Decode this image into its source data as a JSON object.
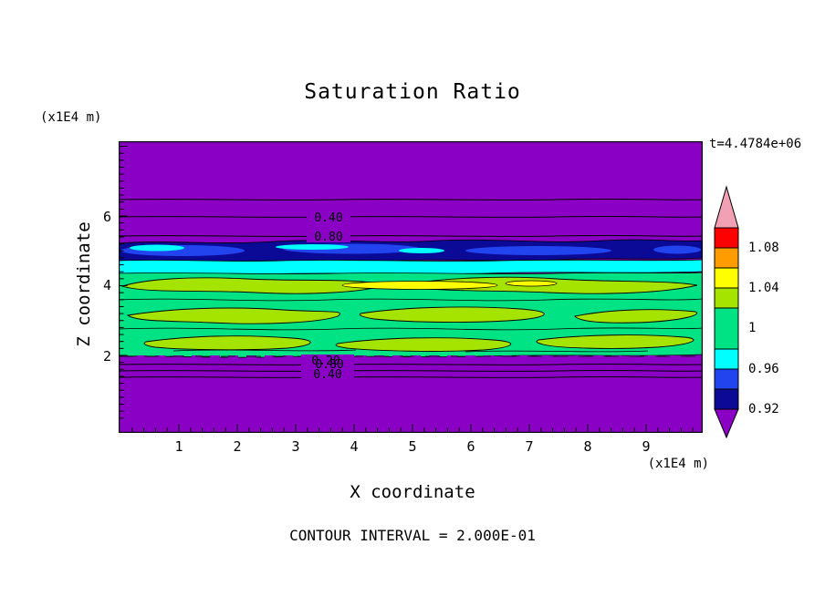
{
  "title": "Saturation Ratio",
  "time_label": "t=4.4784e+06",
  "footer": "CONTOUR INTERVAL = 2.000E-01",
  "axes": {
    "x_label": "X coordinate",
    "x_unit": "(x1E4 m)",
    "y_label": "Z coordinate",
    "y_unit": "(x1E4 m)",
    "x_ticks": [
      "1",
      "2",
      "3",
      "4",
      "5",
      "6",
      "7",
      "8",
      "9"
    ],
    "y_ticks": [
      "6",
      "4",
      "2"
    ]
  },
  "contour_labels": {
    "top_040": "0.40",
    "top_080": "0.80",
    "bottom_020": "0.20",
    "bottom_080": "0.80",
    "bottom_040": "0.40"
  },
  "colorbar": {
    "labels": [
      "1.08",
      "1.04",
      "1",
      "0.96",
      "0.92"
    ]
  },
  "colors": {
    "purple": "#8A00C4",
    "navy": "#0A0A96",
    "blue": "#2244EE",
    "cyan": "#00FFFF",
    "green": "#00E385",
    "chartreuse": "#A4E400",
    "yellow": "#FFFF00",
    "orange": "#FF9C00",
    "red": "#FF0000",
    "pink": "#F2A0B4"
  },
  "chart_data": {
    "type": "heatmap",
    "subtype": "filled-contour",
    "title": "Saturation Ratio",
    "xlabel": "X coordinate (x1E4 m)",
    "ylabel": "Z coordinate (x1E4 m)",
    "xlim": [
      0,
      10
    ],
    "ylim": [
      0,
      8.2
    ],
    "x_ticks": [
      1,
      2,
      3,
      4,
      5,
      6,
      7,
      8,
      9
    ],
    "y_ticks": [
      2,
      4,
      6
    ],
    "time_annotation": "t=4.4784e+06",
    "contour_interval": 0.2,
    "labeled_contour_levels": [
      0.2,
      0.4,
      0.8
    ],
    "colorbar": {
      "orientation": "vertical",
      "position": "right",
      "tick_values": [
        1.08,
        1.04,
        1.0,
        0.96,
        0.92
      ],
      "colors_top_to_bottom": [
        "pink",
        "red",
        "orange",
        "yellow",
        "chartreuse",
        "spring-green",
        "cyan",
        "blue",
        "navy",
        "purple"
      ],
      "arrow_ends": true
    },
    "grid": false,
    "regions_top_to_bottom": [
      {
        "z_range": [
          6.4,
          8.2
        ],
        "saturation_ratio": "< 0.2",
        "fill": "purple"
      },
      {
        "z_range": [
          5.5,
          6.4
        ],
        "saturation_ratio": "0.2 to 0.8 transition, labeled contours 0.40 and 0.80",
        "fill": "purple"
      },
      {
        "z_range": [
          5.0,
          5.5
        ],
        "saturation_ratio": "0.90-0.96",
        "fill": "navy/blue band with cyan patches"
      },
      {
        "z_range": [
          4.8,
          5.0
        ],
        "saturation_ratio": "0.96-0.98",
        "fill": "cyan"
      },
      {
        "z_range": [
          2.1,
          4.8
        ],
        "saturation_ratio": "about 1.00 with 1.02-1.06 lenses",
        "fill": "spring-green with chartreuse and yellow streaks"
      },
      {
        "z_range": [
          1.4,
          2.1
        ],
        "saturation_ratio": "0.8 down to 0.2 transition, labeled contours 0.80, 0.20, 0.40",
        "fill": "purple"
      },
      {
        "z_range": [
          0,
          1.4
        ],
        "saturation_ratio": "< 0.2",
        "fill": "purple"
      }
    ]
  }
}
